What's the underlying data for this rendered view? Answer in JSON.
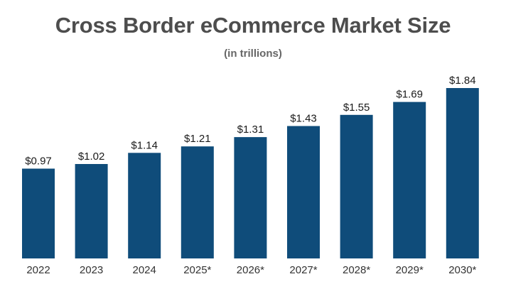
{
  "chart_data": {
    "type": "bar",
    "title": "Cross Border eCommerce Market Size",
    "subtitle": "(in trillions)",
    "categories": [
      "2022",
      "2023",
      "2024",
      "2025*",
      "2026*",
      "2027*",
      "2028*",
      "2029*",
      "2030*"
    ],
    "values": [
      0.97,
      1.02,
      1.14,
      1.21,
      1.31,
      1.43,
      1.55,
      1.69,
      1.84
    ],
    "value_labels": [
      "$0.97",
      "$1.02",
      "$1.14",
      "$1.21",
      "$1.31",
      "$1.43",
      "$1.55",
      "$1.69",
      "$1.84"
    ],
    "xlabel": "",
    "ylabel": "",
    "ylim": [
      0,
      1.84
    ],
    "grid": false,
    "bar_color": "#0f4c7a"
  }
}
